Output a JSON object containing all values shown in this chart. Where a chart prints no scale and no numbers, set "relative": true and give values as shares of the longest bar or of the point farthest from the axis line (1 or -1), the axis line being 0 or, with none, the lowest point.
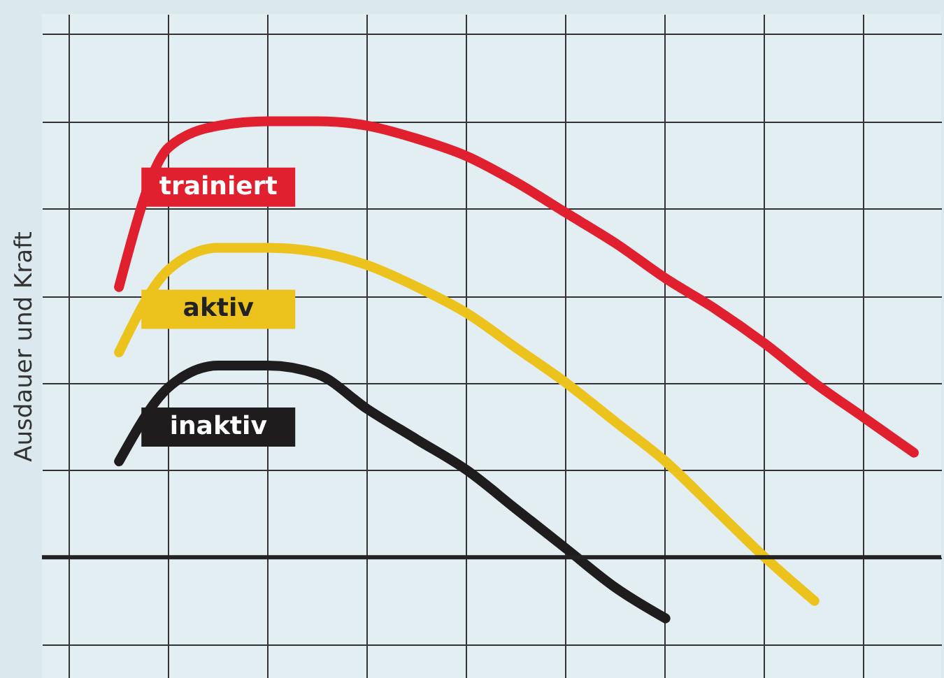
{
  "chart_data": {
    "type": "line",
    "relative": true,
    "ylabel": "Ausdauer und Kraft",
    "grid": true,
    "legend": false,
    "line_style": "solid",
    "categories": [
      null,
      null,
      null,
      null,
      null,
      null,
      null,
      null,
      null,
      null,
      null,
      null,
      null,
      null,
      null,
      null,
      null,
      null
    ],
    "series": [
      {
        "name": "trainiert",
        "color": "#e0202e",
        "values": [
          null,
          0.62,
          0.94,
          0.99,
          1.0,
          1.0,
          0.99,
          0.96,
          0.92,
          0.86,
          0.79,
          0.72,
          0.64,
          0.57,
          0.49,
          0.4,
          0.32,
          0.24
        ]
      },
      {
        "name": "aktiv",
        "color": "#ecc21c",
        "values": [
          null,
          0.47,
          0.66,
          0.71,
          0.71,
          0.7,
          0.67,
          0.62,
          0.56,
          0.48,
          0.4,
          0.31,
          0.22,
          0.11,
          0.0,
          -0.1,
          null,
          null
        ]
      },
      {
        "name": "inaktiv",
        "color": "#1e1c1c",
        "values": [
          null,
          0.22,
          0.39,
          0.44,
          0.44,
          0.42,
          0.34,
          0.27,
          0.2,
          0.11,
          0.02,
          -0.07,
          -0.14,
          null,
          null,
          null,
          null,
          null
        ]
      }
    ]
  }
}
